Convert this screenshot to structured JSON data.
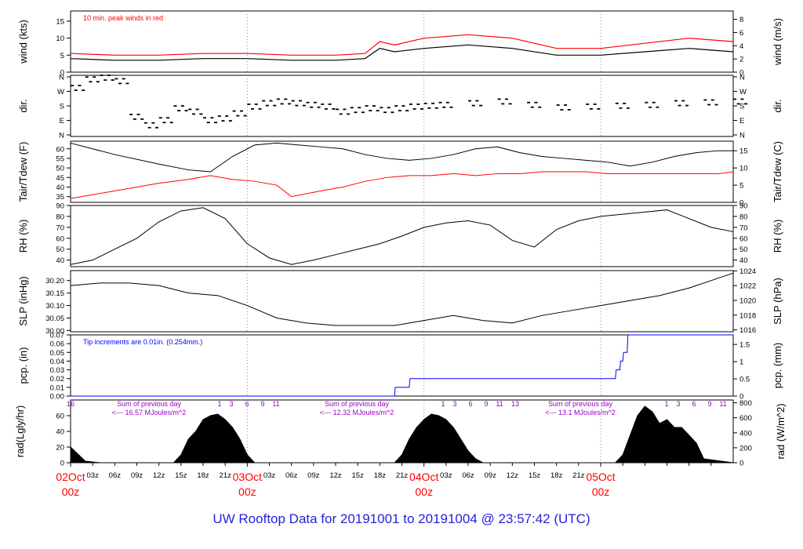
{
  "footer_title": "UW Rooftop Data for 20191001  to  20191004 @ 23:57:42  (UTC)",
  "colors": {
    "red": "#ff0000",
    "blue": "#0000ff",
    "purple": "#9900cc",
    "black": "#000000"
  },
  "chart_data": [
    {
      "panel": "wind",
      "type": "line",
      "ylabel": "wind (kts)",
      "ylabel_right": "wind (m/s)",
      "ylim": [
        0,
        18
      ],
      "left_ticks": [
        0,
        5,
        10,
        15
      ],
      "right_ticks": [
        0,
        2,
        4,
        6,
        8
      ],
      "annotation": "10 min. peak winds in red",
      "series": [
        {
          "name": "wind (kts)",
          "color": "#000000",
          "x": [
            0,
            6,
            12,
            18,
            24,
            30,
            36,
            40,
            42,
            44,
            48,
            54,
            60,
            66,
            72,
            78,
            84,
            90
          ],
          "values": [
            4,
            3.5,
            3.5,
            4,
            4,
            3.5,
            3.5,
            4,
            7,
            6,
            7,
            8,
            7,
            5,
            5,
            6,
            7,
            6
          ]
        },
        {
          "name": "10 min. peak winds in red",
          "color": "#ff0000",
          "x": [
            0,
            6,
            12,
            18,
            24,
            30,
            36,
            40,
            42,
            44,
            48,
            54,
            60,
            66,
            72,
            78,
            84,
            90
          ],
          "values": [
            5.5,
            5,
            5,
            5.5,
            5.5,
            5,
            5,
            5.5,
            9,
            8,
            10,
            11,
            10,
            7,
            7,
            8.5,
            10,
            9
          ]
        }
      ]
    },
    {
      "panel": "dir",
      "type": "scatter",
      "ylabel": "dir.",
      "ylabel_right": "dir.",
      "ylim": [
        0,
        360
      ],
      "left_ticks": [
        "N",
        "E",
        "S",
        "W",
        "N"
      ],
      "right_ticks": [
        "N",
        "E",
        "S",
        "W",
        "N"
      ],
      "series": [
        {
          "name": "dir.",
          "x": [
            0,
            2,
            4,
            6,
            8,
            10,
            12,
            14,
            16,
            18,
            20,
            22,
            24,
            26,
            28,
            30,
            32,
            34,
            36,
            38,
            40,
            42,
            44,
            46,
            48,
            50,
            54,
            58,
            62,
            66,
            70,
            74,
            78,
            82,
            86,
            90
          ],
          "values": [
            290,
            340,
            350,
            330,
            120,
            70,
            100,
            170,
            150,
            100,
            110,
            140,
            180,
            200,
            210,
            200,
            190,
            180,
            150,
            160,
            170,
            160,
            170,
            180,
            185,
            190,
            200,
            210,
            190,
            175,
            180,
            185,
            190,
            200,
            205,
            210
          ]
        }
      ]
    },
    {
      "panel": "temp",
      "type": "line",
      "ylabel": "Tair/Tdew (F)",
      "ylabel_right": "Tair/Tdew (C)",
      "ylim": [
        32,
        64
      ],
      "left_ticks": [
        35,
        40,
        45,
        50,
        55,
        60
      ],
      "right_ticks": [
        0,
        5,
        10,
        15
      ],
      "series": [
        {
          "name": "Tair",
          "color": "#000000",
          "x": [
            0,
            6,
            12,
            16,
            19,
            22,
            25,
            28,
            31,
            34,
            37,
            40,
            43,
            46,
            49,
            52,
            55,
            58,
            61,
            64,
            67,
            70,
            73,
            76,
            79,
            82,
            85,
            88,
            90
          ],
          "values": [
            63,
            57,
            52,
            49,
            48,
            56,
            62,
            63,
            62,
            61,
            60,
            57,
            55,
            54,
            55,
            57,
            60,
            61,
            58,
            56,
            55,
            54,
            53,
            51,
            53,
            56,
            58,
            59,
            59
          ]
        },
        {
          "name": "Tdew",
          "color": "#ff0000",
          "x": [
            0,
            6,
            12,
            16,
            19,
            22,
            25,
            28,
            30,
            34,
            37,
            40,
            43,
            46,
            49,
            52,
            55,
            58,
            61,
            64,
            67,
            70,
            73,
            76,
            79,
            82,
            85,
            88,
            90
          ],
          "values": [
            34,
            38,
            42,
            44,
            46,
            44,
            43,
            41,
            35,
            38,
            40,
            43,
            45,
            46,
            46,
            47,
            46,
            47,
            47,
            48,
            48,
            48,
            47,
            47,
            47,
            47,
            47,
            47,
            48
          ]
        }
      ]
    },
    {
      "panel": "rh",
      "type": "line",
      "ylabel": "RH (%)",
      "ylabel_right": "RH (%)",
      "ylim": [
        34,
        90
      ],
      "left_ticks": [
        40,
        50,
        60,
        70,
        80,
        90
      ],
      "right_ticks": [
        40,
        50,
        60,
        70,
        80,
        90
      ],
      "series": [
        {
          "name": "RH",
          "color": "#000000",
          "x": [
            0,
            3,
            6,
            9,
            12,
            15,
            18,
            21,
            24,
            27,
            30,
            33,
            36,
            39,
            42,
            45,
            48,
            51,
            54,
            57,
            60,
            63,
            66,
            69,
            72,
            75,
            78,
            81,
            84,
            87,
            90
          ],
          "values": [
            36,
            40,
            50,
            60,
            75,
            85,
            88,
            78,
            55,
            42,
            36,
            40,
            45,
            50,
            55,
            62,
            70,
            74,
            76,
            72,
            58,
            52,
            68,
            76,
            80,
            82,
            84,
            86,
            78,
            70,
            66
          ]
        }
      ]
    },
    {
      "panel": "slp",
      "type": "line",
      "ylabel": "SLP (inHg)",
      "ylabel_right": "SLP (hPa)",
      "ylim": [
        29.995,
        30.24
      ],
      "left_ticks": [
        "30.00",
        "30.05",
        "30.10",
        "30.15",
        "30.20"
      ],
      "right_ticks": [
        1016,
        1018,
        1020,
        1022,
        1024
      ],
      "series": [
        {
          "name": "SLP",
          "color": "#000000",
          "x": [
            0,
            4,
            8,
            12,
            16,
            20,
            24,
            28,
            32,
            36,
            40,
            44,
            48,
            52,
            56,
            60,
            64,
            68,
            72,
            76,
            80,
            84,
            88,
            90
          ],
          "values": [
            30.18,
            30.19,
            30.19,
            30.18,
            30.15,
            30.14,
            30.1,
            30.05,
            30.03,
            30.02,
            30.02,
            30.02,
            30.04,
            30.06,
            30.04,
            30.03,
            30.06,
            30.08,
            30.1,
            30.12,
            30.14,
            30.17,
            30.21,
            30.23
          ]
        }
      ]
    },
    {
      "panel": "pcp",
      "type": "line",
      "ylabel": "pcp. (in)",
      "ylabel_right": "pcp. (mm)",
      "ylim": [
        0,
        0.07
      ],
      "left_ticks": [
        "0.00",
        "0.01",
        "0.02",
        "0.03",
        "0.04",
        "0.05",
        "0.06",
        "0.07"
      ],
      "right_ticks": [
        "0",
        "0.5",
        "1",
        "1.5"
      ],
      "annotation": "Tip increments are 0.01in. (0.254mm.)",
      "series": [
        {
          "name": "pcp",
          "color": "#0000ff",
          "x": [
            0,
            44,
            44.1,
            46,
            46.1,
            74,
            74.1,
            74.6,
            74.7,
            75,
            75.1,
            75.6,
            75.7,
            90
          ],
          "values": [
            0,
            0,
            0.01,
            0.01,
            0.02,
            0.02,
            0.03,
            0.03,
            0.04,
            0.04,
            0.05,
            0.05,
            0.07,
            0.07
          ]
        }
      ]
    },
    {
      "panel": "rad",
      "type": "area",
      "ylabel": "rad(Lgly/hr)",
      "ylabel_right": "rad (W/m^2)",
      "ylim": [
        0,
        80
      ],
      "left_ticks": [
        0,
        20,
        40,
        60
      ],
      "right_ticks": [
        0,
        200,
        400,
        600,
        800
      ],
      "annotations": [
        {
          "line1": "Sum of previous day",
          "line2": "<--- 16.57 MJoules/m^2"
        },
        {
          "line1": "Sum of previous day",
          "line2": "<--- 12.32 MJoules/m^2"
        },
        {
          "line1": "Sum of previous day",
          "line2": "<--- 13.1 MJoules/m^2"
        }
      ],
      "hour_markers_day1": [
        "16",
        "1",
        "3",
        "6",
        "9",
        "11"
      ],
      "hour_markers_day2": [
        "1",
        "3",
        "6",
        "9",
        "11",
        "13"
      ],
      "hour_markers_day3": [
        "1",
        "3",
        "6",
        "9",
        "11"
      ],
      "series": [
        {
          "name": "radiation",
          "color": "#000000",
          "x": [
            0,
            2,
            4,
            14,
            15,
            16,
            17,
            18,
            19,
            20,
            21,
            22,
            23,
            24,
            25,
            32,
            44,
            45,
            46,
            47,
            48,
            49,
            50,
            51,
            52,
            53,
            54,
            55,
            56,
            57,
            62,
            68,
            74,
            75,
            76,
            77,
            78,
            79,
            80,
            81,
            82,
            83,
            84,
            85,
            86,
            90
          ],
          "values": [
            20,
            2,
            0,
            0,
            10,
            30,
            40,
            55,
            60,
            62,
            55,
            45,
            30,
            10,
            0,
            0,
            0,
            10,
            30,
            45,
            55,
            62,
            60,
            55,
            45,
            30,
            15,
            5,
            0,
            0,
            0,
            0,
            0,
            10,
            35,
            60,
            72,
            65,
            50,
            55,
            45,
            45,
            35,
            25,
            5,
            0
          ]
        }
      ]
    }
  ],
  "x_axis": {
    "hour_ticks": [
      "03z",
      "06z",
      "09z",
      "12z",
      "15z",
      "18z",
      "21z",
      "03z",
      "06z",
      "09z",
      "12z",
      "15z",
      "18z",
      "21z",
      "03z",
      "06z",
      "09z",
      "12z",
      "15z",
      "18z",
      "21z"
    ],
    "day_labels": [
      {
        "date": "02Oct",
        "hour": "00z"
      },
      {
        "date": "03Oct",
        "hour": "00z"
      },
      {
        "date": "04Oct",
        "hour": "00z"
      },
      {
        "date": "05Oct",
        "hour": "00z"
      }
    ]
  }
}
